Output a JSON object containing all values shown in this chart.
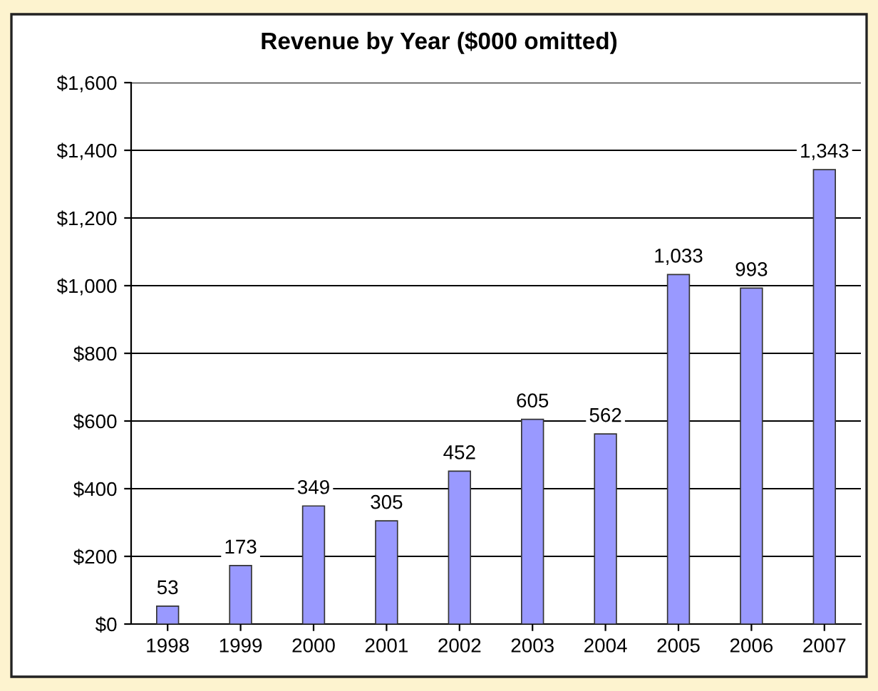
{
  "chart_data": {
    "type": "bar",
    "title": "Revenue by Year ($000 omitted)",
    "categories": [
      "1998",
      "1999",
      "2000",
      "2001",
      "2002",
      "2003",
      "2004",
      "2005",
      "2006",
      "2007"
    ],
    "values": [
      53,
      173,
      349,
      305,
      452,
      605,
      562,
      1033,
      993,
      1343
    ],
    "value_labels": [
      "53",
      "173",
      "349",
      "305",
      "452",
      "605",
      "562",
      "1,033",
      "993",
      "1,343"
    ],
    "color": "#9999ff",
    "ylim": [
      0,
      1600
    ],
    "yticks": [
      {
        "value": 0,
        "label": "$0"
      },
      {
        "value": 200,
        "label": "$200"
      },
      {
        "value": 400,
        "label": "$400"
      },
      {
        "value": 600,
        "label": "$600"
      },
      {
        "value": 800,
        "label": "$800"
      },
      {
        "value": 1000,
        "label": "$1,000"
      },
      {
        "value": 1200,
        "label": "$1,200"
      },
      {
        "value": 1400,
        "label": "$1,400"
      },
      {
        "value": 1600,
        "label": "$1,600"
      }
    ],
    "grid": "y"
  }
}
